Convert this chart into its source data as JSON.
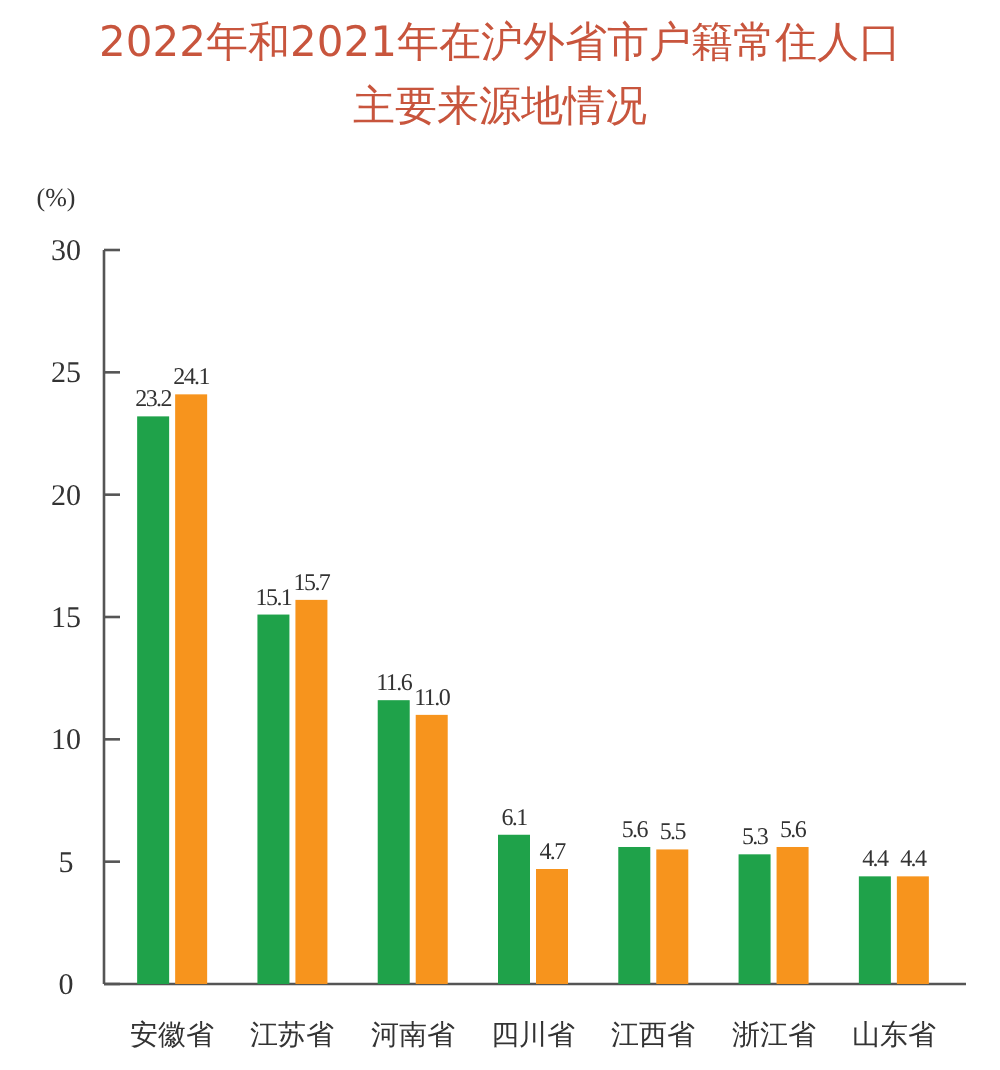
{
  "chart_data": {
    "type": "bar",
    "title": "2022年和2021年在沪外省市户籍常住人口",
    "subtitle": "主要来源地情况",
    "ylabel": "(%)",
    "categories": [
      "安徽省",
      "江苏省",
      "河南省",
      "四川省",
      "江西省",
      "浙江省",
      "山东省"
    ],
    "series": [
      {
        "color": "#1fa24a",
        "values": [
          23.2,
          15.1,
          11.6,
          6.1,
          5.6,
          5.3,
          4.4
        ],
        "value_labels": [
          "23.2",
          "15.1",
          "11.6",
          "6.1",
          "5.6",
          "5.3",
          "4.4"
        ]
      },
      {
        "color": "#f7941d",
        "values": [
          24.1,
          15.7,
          11.0,
          4.7,
          5.5,
          5.6,
          4.4
        ],
        "value_labels": [
          "24.1",
          "15.7",
          "11.0",
          "4.7",
          "5.5",
          "5.6",
          "4.4"
        ]
      }
    ],
    "ylim": [
      0,
      30
    ],
    "yticks": [
      0,
      5,
      10,
      15,
      20,
      25,
      30
    ],
    "grid": false
  }
}
